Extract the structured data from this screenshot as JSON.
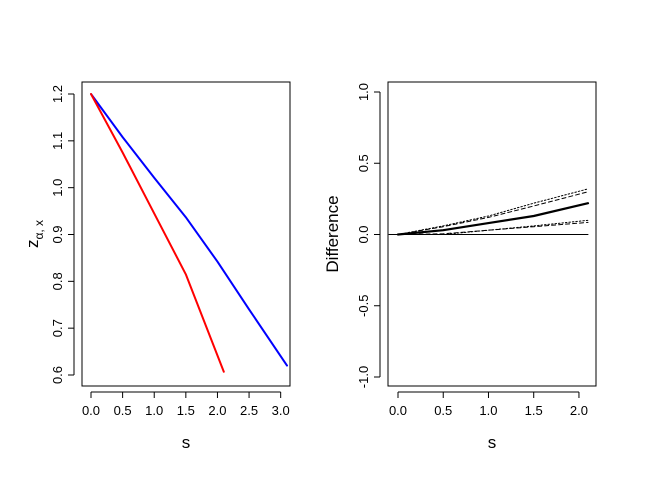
{
  "chart_data": [
    {
      "type": "line",
      "xlabel": "s",
      "ylabel": "z",
      "ylabel_subscript": "α, x",
      "xlim": [
        0.0,
        3.1
      ],
      "ylim": [
        0.6,
        1.2
      ],
      "x_ticks": [
        "0.0",
        "0.5",
        "1.0",
        "1.5",
        "2.0",
        "2.5",
        "3.0"
      ],
      "y_ticks": [
        "0.6",
        "0.7",
        "0.8",
        "0.9",
        "1.0",
        "1.1",
        "1.2"
      ],
      "grid": false,
      "series": [
        {
          "color": "#0000ff",
          "x": [
            0.0,
            0.5,
            1.0,
            1.5,
            2.0,
            2.5,
            3.1
          ],
          "y": [
            1.2,
            1.108,
            1.021,
            0.937,
            0.842,
            0.74,
            0.62
          ]
        },
        {
          "color": "#ff0000",
          "x": [
            0.0,
            0.5,
            1.0,
            1.5,
            2.1
          ],
          "y": [
            1.2,
            1.075,
            0.945,
            0.815,
            0.607
          ]
        }
      ]
    },
    {
      "type": "line",
      "xlabel": "s",
      "ylabel": "Difference",
      "xlim": [
        0.0,
        2.1
      ],
      "ylim": [
        -1.0,
        1.0
      ],
      "x_ticks": [
        "0.0",
        "0.5",
        "1.0",
        "1.5",
        "2.0"
      ],
      "y_ticks": [
        "-1.0",
        "-0.5",
        "0.0",
        "0.5",
        "1.0"
      ],
      "grid": false,
      "series": [
        {
          "style": "reference",
          "x": [
            -0.1,
            2.1
          ],
          "y": [
            0.0,
            0.0
          ]
        },
        {
          "style": "bold",
          "x": [
            0.0,
            0.5,
            1.0,
            1.5,
            2.1
          ],
          "y": [
            0.0,
            0.03,
            0.08,
            0.13,
            0.22
          ]
        },
        {
          "style": "dashed",
          "x": [
            0.0,
            0.5,
            1.0,
            1.5,
            2.1
          ],
          "y": [
            0.0,
            0.055,
            0.12,
            0.2,
            0.3
          ]
        },
        {
          "style": "dotted",
          "x": [
            0.0,
            0.5,
            1.0,
            1.5,
            2.1
          ],
          "y": [
            0.0,
            0.06,
            0.13,
            0.22,
            0.32
          ]
        },
        {
          "style": "dashed",
          "x": [
            0.0,
            0.5,
            1.0,
            1.5,
            2.1
          ],
          "y": [
            0.0,
            0.005,
            0.03,
            0.055,
            0.085
          ]
        },
        {
          "style": "dotted",
          "x": [
            0.0,
            0.5,
            1.0,
            1.5,
            2.1
          ],
          "y": [
            0.0,
            0.0,
            0.03,
            0.06,
            0.1
          ]
        }
      ]
    }
  ]
}
